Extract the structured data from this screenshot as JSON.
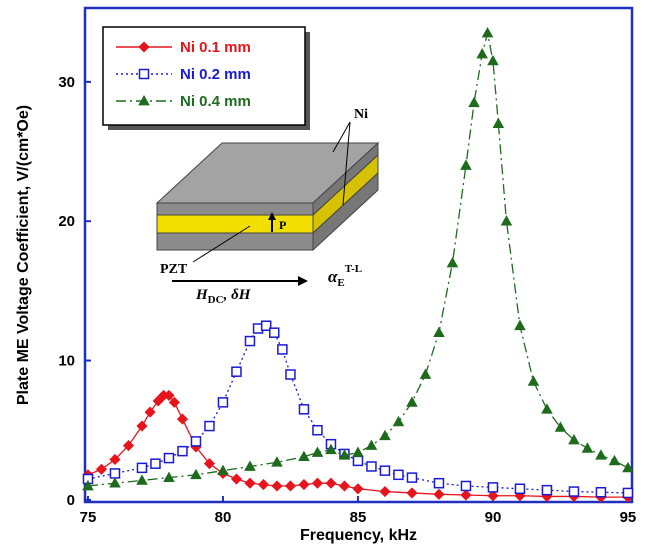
{
  "chart_data": {
    "type": "line",
    "x_label": "Frequency, kHz",
    "y_label": "Plate ME Voltage Coefficient, V/(cm*Oe)",
    "xlim": [
      74.89,
      95.15
    ],
    "ylim": [
      -0.15,
      35.3
    ],
    "xticks": [
      75,
      80,
      85,
      90,
      95
    ],
    "yticks": [
      0,
      10,
      20,
      30
    ],
    "frame_color": "#1f2fbf",
    "series": [
      {
        "name": "Ni 0.1 mm",
        "color": "#e8141c",
        "marker": "diamond",
        "line_style": "solid",
        "x": [
          75,
          75.5,
          76,
          76.5,
          77,
          77.3,
          77.6,
          77.8,
          78,
          78.2,
          78.5,
          79,
          79.5,
          80,
          80.5,
          81,
          81.5,
          82,
          82.5,
          83,
          83.5,
          84,
          84.5,
          85,
          86,
          87,
          88,
          89,
          90,
          91,
          92,
          93,
          94,
          95
        ],
        "values": [
          1.8,
          2.2,
          2.9,
          3.9,
          5.3,
          6.3,
          7.1,
          7.5,
          7.5,
          7.0,
          5.8,
          3.8,
          2.6,
          1.9,
          1.5,
          1.2,
          1.1,
          1.0,
          1.0,
          1.1,
          1.2,
          1.2,
          1.0,
          0.8,
          0.6,
          0.5,
          0.4,
          0.35,
          0.3,
          0.3,
          0.25,
          0.25,
          0.2,
          0.2
        ]
      },
      {
        "name": "Ni 0.2 mm",
        "color": "#1a1ad6",
        "marker": "square",
        "line_style": "dotted",
        "x": [
          75,
          76,
          77,
          77.5,
          78,
          78.5,
          79,
          79.5,
          80,
          80.5,
          81,
          81.3,
          81.6,
          81.9,
          82.2,
          82.5,
          83,
          83.5,
          84,
          84.5,
          85,
          85.5,
          86,
          86.5,
          87,
          88,
          89,
          90,
          91,
          92,
          93,
          94,
          95
        ],
        "values": [
          1.5,
          1.9,
          2.3,
          2.6,
          3.0,
          3.5,
          4.2,
          5.3,
          7.0,
          9.2,
          11.4,
          12.3,
          12.5,
          12.0,
          10.8,
          9.0,
          6.5,
          5.0,
          4.0,
          3.3,
          2.8,
          2.4,
          2.1,
          1.8,
          1.6,
          1.2,
          1.0,
          0.9,
          0.8,
          0.7,
          0.6,
          0.55,
          0.5
        ]
      },
      {
        "name": "Ni 0.4 mm",
        "color": "#1e6b1e",
        "marker": "triangle",
        "line_style": "dashdot",
        "x": [
          75,
          76,
          77,
          78,
          79,
          80,
          81,
          82,
          83,
          83.5,
          84,
          84.5,
          85,
          85.5,
          86,
          86.5,
          87,
          87.5,
          88,
          88.5,
          89,
          89.3,
          89.6,
          89.8,
          90,
          90.2,
          90.5,
          91,
          91.5,
          92,
          92.5,
          93,
          93.5,
          94,
          94.5,
          95
        ],
        "values": [
          1.0,
          1.2,
          1.4,
          1.6,
          1.8,
          2.1,
          2.4,
          2.7,
          3.1,
          3.4,
          3.6,
          3.2,
          3.4,
          3.9,
          4.6,
          5.6,
          7.0,
          9.0,
          12.0,
          17.0,
          24.0,
          28.5,
          32.0,
          33.5,
          31.5,
          27.0,
          20.0,
          12.5,
          8.5,
          6.5,
          5.2,
          4.3,
          3.7,
          3.2,
          2.8,
          2.3
        ]
      }
    ],
    "inset": {
      "ni": "Ni",
      "p": "P",
      "pzt": "PZT",
      "h": "H",
      "h_sub": "DC",
      "h_rest": ", δH",
      "alpha": "α",
      "alpha_sub": "E",
      "alpha_sup": "T-L"
    }
  }
}
